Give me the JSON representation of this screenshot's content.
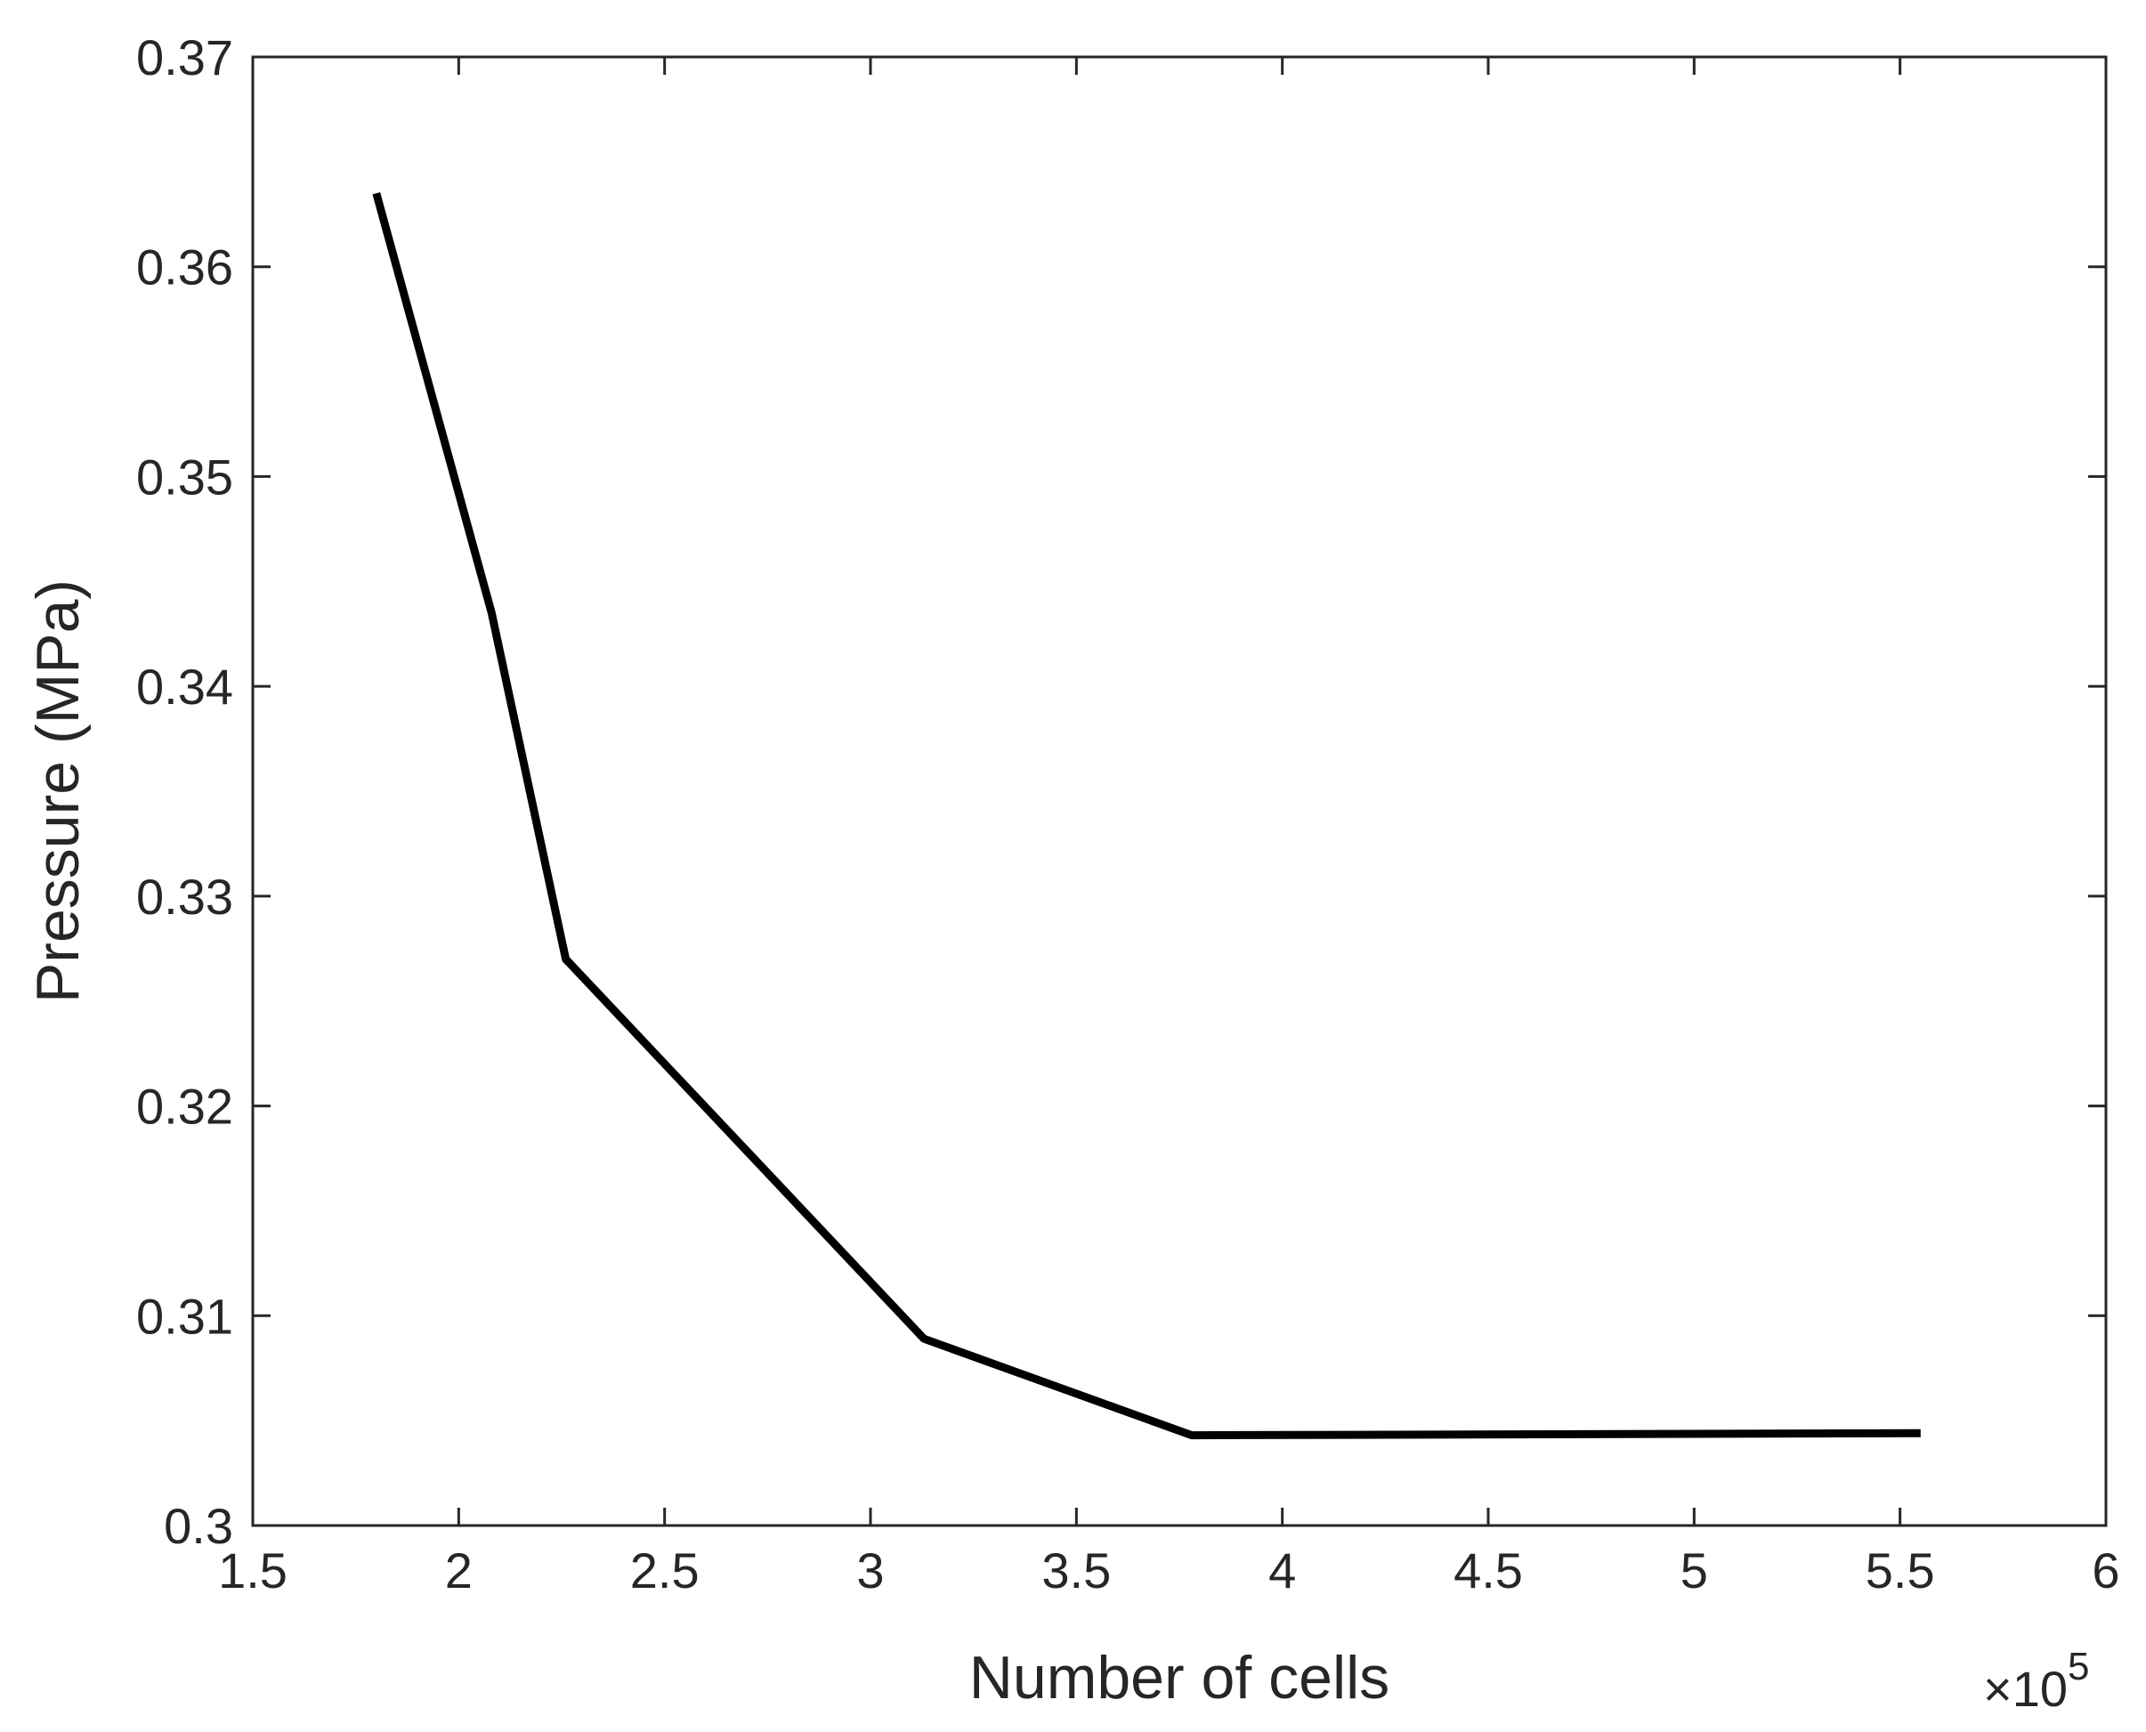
{
  "chart_data": {
    "type": "line",
    "title": "",
    "xlabel": "Number of cells",
    "ylabel": "Pressure (MPa)",
    "x_multiplier_label": "×10",
    "x_multiplier_exponent": "5",
    "xlim": [
      1.5,
      6
    ],
    "ylim": [
      0.3,
      0.37
    ],
    "xticks": [
      1.5,
      2,
      2.5,
      3,
      3.5,
      4,
      4.5,
      5,
      5.5,
      6
    ],
    "xtick_labels": [
      "1.5",
      "2",
      "2.5",
      "3",
      "3.5",
      "4",
      "4.5",
      "5",
      "5.5",
      "6"
    ],
    "yticks": [
      0.3,
      0.31,
      0.32,
      0.33,
      0.34,
      0.35,
      0.36,
      0.37
    ],
    "ytick_labels": [
      "0.3",
      "0.31",
      "0.32",
      "0.33",
      "0.34",
      "0.35",
      "0.36",
      "0.37"
    ],
    "grid": false,
    "series": [
      {
        "color": "#000000",
        "x": [
          1.8,
          2.08,
          2.26,
          3.13,
          3.78,
          5.55
        ],
        "y": [
          0.3635,
          0.3435,
          0.327,
          0.3089,
          0.3043,
          0.3044
        ]
      }
    ]
  }
}
